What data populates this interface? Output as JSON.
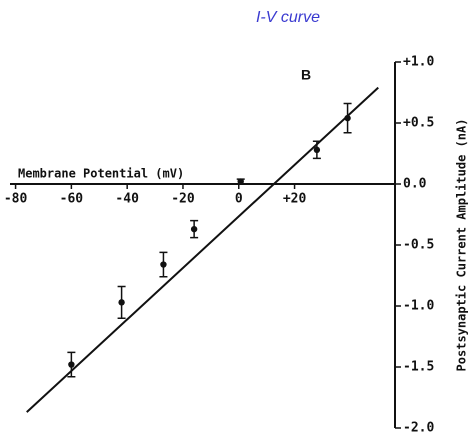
{
  "chart_data": {
    "type": "scatter",
    "title": "I-V curve",
    "panel_label": "B",
    "x_label": "Membrane Potential (mV)",
    "y_label": "Postsynaptic Current Amplitude (nA)",
    "x": [
      -60,
      -42,
      -27,
      -16,
      0.7,
      28,
      39
    ],
    "values": [
      -1.48,
      -0.97,
      -0.66,
      -0.37,
      0.02,
      0.28,
      0.54
    ],
    "errors": [
      0.1,
      0.13,
      0.1,
      0.07,
      0.02,
      0.07,
      0.12
    ],
    "color": "#111111",
    "fit_line": {
      "x": [
        -76,
        50
      ],
      "y": [
        -1.87,
        0.79
      ]
    },
    "xlim": [
      -82,
      56
    ],
    "xticks": [
      -80,
      -60,
      -40,
      -20,
      0,
      {
        "value": 20,
        "label": "+20"
      }
    ],
    "ylim": [
      -2.0,
      1.0
    ],
    "yticks": [
      {
        "value": 1.0,
        "label": "+1.0"
      },
      {
        "value": 0.5,
        "label": "+0.5"
      },
      {
        "value": 0.0,
        "label": "0.0"
      },
      -0.5,
      {
        "value": -1.0,
        "label": "-1.0"
      },
      -1.5,
      {
        "value": -2.0,
        "label": "-2.0"
      }
    ],
    "grid": false
  }
}
